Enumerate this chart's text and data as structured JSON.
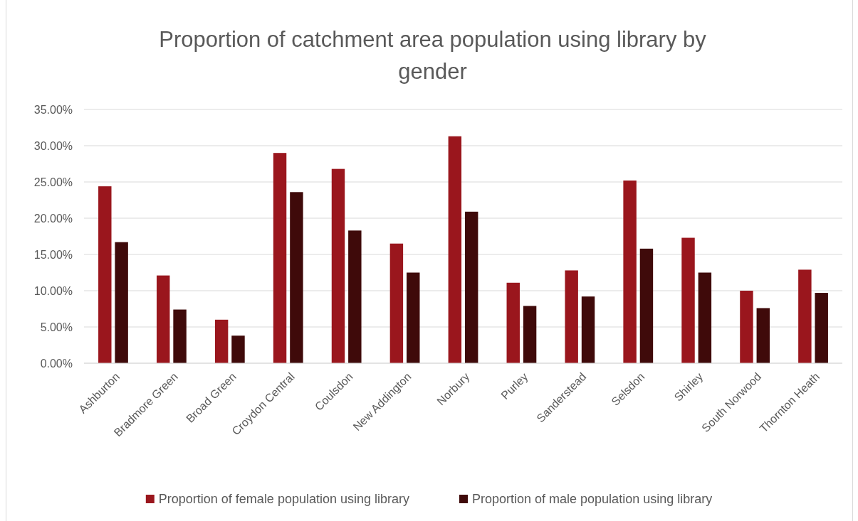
{
  "chart_data": {
    "type": "bar",
    "title": "Proportion of catchment area population using library by gender",
    "categories": [
      "Ashburton",
      "Bradmore Green",
      "Broad Green",
      "Croydon Central",
      "Coulsdon",
      "New Addington",
      "Norbury",
      "Purley",
      "Sanderstead",
      "Selsdon",
      "Shirley",
      "South Norwood",
      "Thornton Heath"
    ],
    "series": [
      {
        "name": "Proportion of female population using library",
        "color": "#9a161d",
        "values": [
          24.4,
          12.1,
          6.0,
          29.0,
          26.8,
          16.5,
          31.3,
          11.1,
          12.8,
          25.2,
          17.3,
          10.0,
          12.9
        ]
      },
      {
        "name": "Proportion of male population using library",
        "color": "#3f0a0a",
        "values": [
          16.7,
          7.4,
          3.8,
          23.6,
          18.3,
          12.5,
          20.9,
          7.9,
          9.2,
          15.8,
          12.5,
          7.6,
          9.7
        ]
      }
    ],
    "ylim": [
      0,
      35
    ],
    "yticks": [
      {
        "value": 0,
        "label": "0.00%"
      },
      {
        "value": 5,
        "label": "5.00%"
      },
      {
        "value": 10,
        "label": "10.00%"
      },
      {
        "value": 15,
        "label": "15.00%"
      },
      {
        "value": 20,
        "label": "20.00%"
      },
      {
        "value": 25,
        "label": "25.00%"
      },
      {
        "value": 30,
        "label": "30.00%"
      },
      {
        "value": 35,
        "label": "35.00%"
      }
    ],
    "grid": "y",
    "legend": "bottom"
  }
}
